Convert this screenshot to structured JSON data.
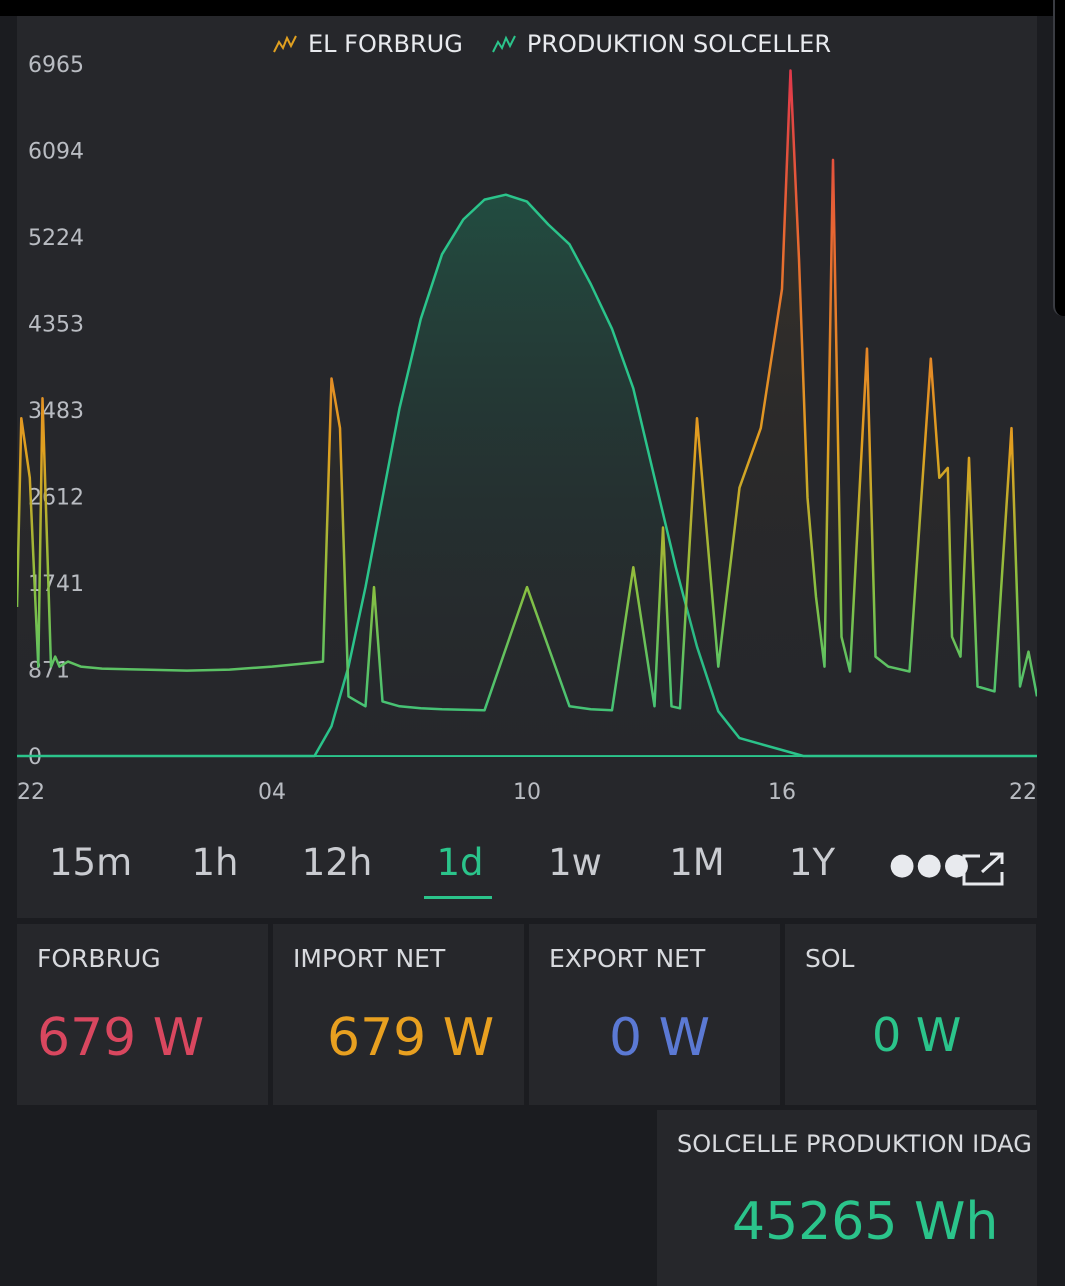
{
  "chart_data": {
    "type": "line",
    "legend": [
      {
        "name": "EL FORBRUG",
        "color": "#e0a020",
        "icon": "line-chart-icon"
      },
      {
        "name": "PRODUKTION SOLCELLER",
        "color": "#2bc48b",
        "icon": "line-chart-icon"
      }
    ],
    "legend_position": "top",
    "y_ticks": [
      "6965",
      "6094",
      "5224",
      "4353",
      "3483",
      "2612",
      "1741",
      "871",
      "0"
    ],
    "x_ticks": [
      "22",
      "04",
      "10",
      "16",
      "22"
    ],
    "ylim": [
      0,
      6965
    ],
    "xlim": [
      22,
      46
    ],
    "series": [
      {
        "name": "PRODUKTION SOLCELLER",
        "color": "#2bc48b",
        "x": [
          22,
          29.0,
          29.4,
          29.8,
          30.2,
          30.6,
          31.0,
          31.5,
          32.0,
          32.5,
          33.0,
          33.5,
          34.0,
          34.5,
          35.0,
          35.5,
          36.0,
          36.5,
          37.0,
          37.5,
          38.0,
          38.5,
          39.0,
          39.5,
          40.0,
          40.5,
          41.0,
          41.5,
          42.0,
          42.5,
          43.0,
          46
        ],
        "values": [
          0,
          0,
          300,
          900,
          1700,
          2600,
          3500,
          4400,
          5050,
          5400,
          5600,
          5650,
          5580,
          5350,
          5150,
          4750,
          4300,
          3700,
          2800,
          1900,
          1100,
          450,
          180,
          120,
          60,
          0,
          0,
          0,
          0,
          0,
          0,
          0
        ]
      },
      {
        "name": "EL FORBRUG",
        "color": "#e0a020",
        "x": [
          22.0,
          22.1,
          22.3,
          22.5,
          22.6,
          22.8,
          22.9,
          23.0,
          23.2,
          23.5,
          24.0,
          25.0,
          26.0,
          27.0,
          28.0,
          29.2,
          29.4,
          29.6,
          29.8,
          30.0,
          30.2,
          30.4,
          30.6,
          31.0,
          31.5,
          32.0,
          33.0,
          34.0,
          35.0,
          35.5,
          36.0,
          36.5,
          37.0,
          37.2,
          37.4,
          37.6,
          38.0,
          38.5,
          39.0,
          39.5,
          40.0,
          40.2,
          40.4,
          40.6,
          40.8,
          41.0,
          41.2,
          41.4,
          41.6,
          42.0,
          42.2,
          42.5,
          43.0,
          43.5,
          43.7,
          43.9,
          44.0,
          44.2,
          44.4,
          44.6,
          45.0,
          45.4,
          45.6,
          45.8,
          46.0
        ],
        "values": [
          1500,
          3400,
          2800,
          900,
          3600,
          900,
          1000,
          900,
          950,
          900,
          880,
          870,
          860,
          870,
          900,
          950,
          3800,
          3300,
          600,
          550,
          500,
          1700,
          550,
          500,
          480,
          470,
          460,
          1700,
          500,
          470,
          460,
          1900,
          500,
          2300,
          500,
          480,
          3400,
          900,
          2700,
          3300,
          4700,
          6900,
          5000,
          2600,
          1600,
          900,
          6000,
          1200,
          850,
          4100,
          1000,
          900,
          850,
          4000,
          2800,
          2900,
          1200,
          1000,
          3000,
          700,
          650,
          3300,
          700,
          1050,
          600
        ]
      }
    ]
  },
  "tabs": {
    "items": [
      "15m",
      "1h",
      "12h",
      "1d",
      "1w",
      "1M",
      "1Y"
    ],
    "active": "1d",
    "more_icon": "ellipsis-icon",
    "expand_icon": "external-link-icon"
  },
  "cards": {
    "forbrug": {
      "label": "FORBRUG",
      "value": "679 W",
      "color": "#d9475f"
    },
    "import": {
      "label": "IMPORT NET",
      "value": "679 W",
      "color": "#e8a020"
    },
    "export": {
      "label": "EXPORT NET",
      "value": "0 W",
      "color": "#5b79d4"
    },
    "sol": {
      "label": "SOL",
      "value": "0 W",
      "color": "#2bc48b"
    },
    "today": {
      "label": "SOLCELLE PRODUKTION IDAG",
      "value": "45265 Wh",
      "color": "#2bc48b"
    }
  }
}
